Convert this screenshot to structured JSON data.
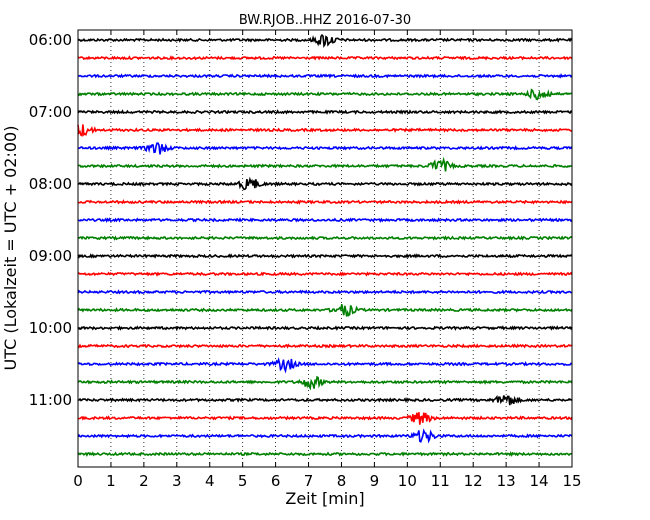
{
  "chart_data": {
    "type": "line",
    "title": "BW.RJOB..HHZ 2016-07-30",
    "xlabel": "Zeit  [min]",
    "ylabel": "UTC (Lokalzeit = UTC + 02:00)",
    "x_ticks": [
      "0",
      "1",
      "2",
      "3",
      "4",
      "5",
      "6",
      "7",
      "8",
      "9",
      "10",
      "11",
      "12",
      "13",
      "14",
      "15"
    ],
    "xlim": [
      0,
      15
    ],
    "y_ticks": [
      "06:00",
      "07:00",
      "08:00",
      "09:00",
      "10:00",
      "11:00"
    ],
    "grid": "vertical dotted",
    "series_colors": [
      "#000000",
      "#ff0000",
      "#0000ff",
      "#008000"
    ],
    "traces": [
      {
        "start": "06:00",
        "color": "#000000",
        "peak": 7.5
      },
      {
        "start": "06:15",
        "color": "#ff0000",
        "peak": 0
      },
      {
        "start": "06:30",
        "color": "#0000ff",
        "peak": 0
      },
      {
        "start": "06:45",
        "color": "#008000",
        "peak": 14.0
      },
      {
        "start": "07:00",
        "color": "#000000",
        "peak": 0
      },
      {
        "start": "07:15",
        "color": "#ff0000",
        "peak": 0.1
      },
      {
        "start": "07:30",
        "color": "#0000ff",
        "peak": 2.4
      },
      {
        "start": "07:45",
        "color": "#008000",
        "peak": 11.0
      },
      {
        "start": "08:00",
        "color": "#000000",
        "peak": 5.2
      },
      {
        "start": "08:15",
        "color": "#ff0000",
        "peak": 0
      },
      {
        "start": "08:30",
        "color": "#0000ff",
        "peak": 0
      },
      {
        "start": "08:45",
        "color": "#008000",
        "peak": 0
      },
      {
        "start": "09:00",
        "color": "#000000",
        "peak": 0
      },
      {
        "start": "09:15",
        "color": "#ff0000",
        "peak": 0
      },
      {
        "start": "09:30",
        "color": "#0000ff",
        "peak": 0
      },
      {
        "start": "09:45",
        "color": "#008000",
        "peak": 8.1
      },
      {
        "start": "10:00",
        "color": "#000000",
        "peak": 0
      },
      {
        "start": "10:15",
        "color": "#ff0000",
        "peak": 0
      },
      {
        "start": "10:30",
        "color": "#0000ff",
        "peak": 6.3
      },
      {
        "start": "10:45",
        "color": "#008000",
        "peak": 7.1
      },
      {
        "start": "11:00",
        "color": "#000000",
        "peak": 13.0
      },
      {
        "start": "11:15",
        "color": "#ff0000",
        "peak": 10.4
      },
      {
        "start": "11:30",
        "color": "#0000ff",
        "peak": 10.5
      },
      {
        "start": "11:45",
        "color": "#008000",
        "peak": 0
      }
    ]
  }
}
